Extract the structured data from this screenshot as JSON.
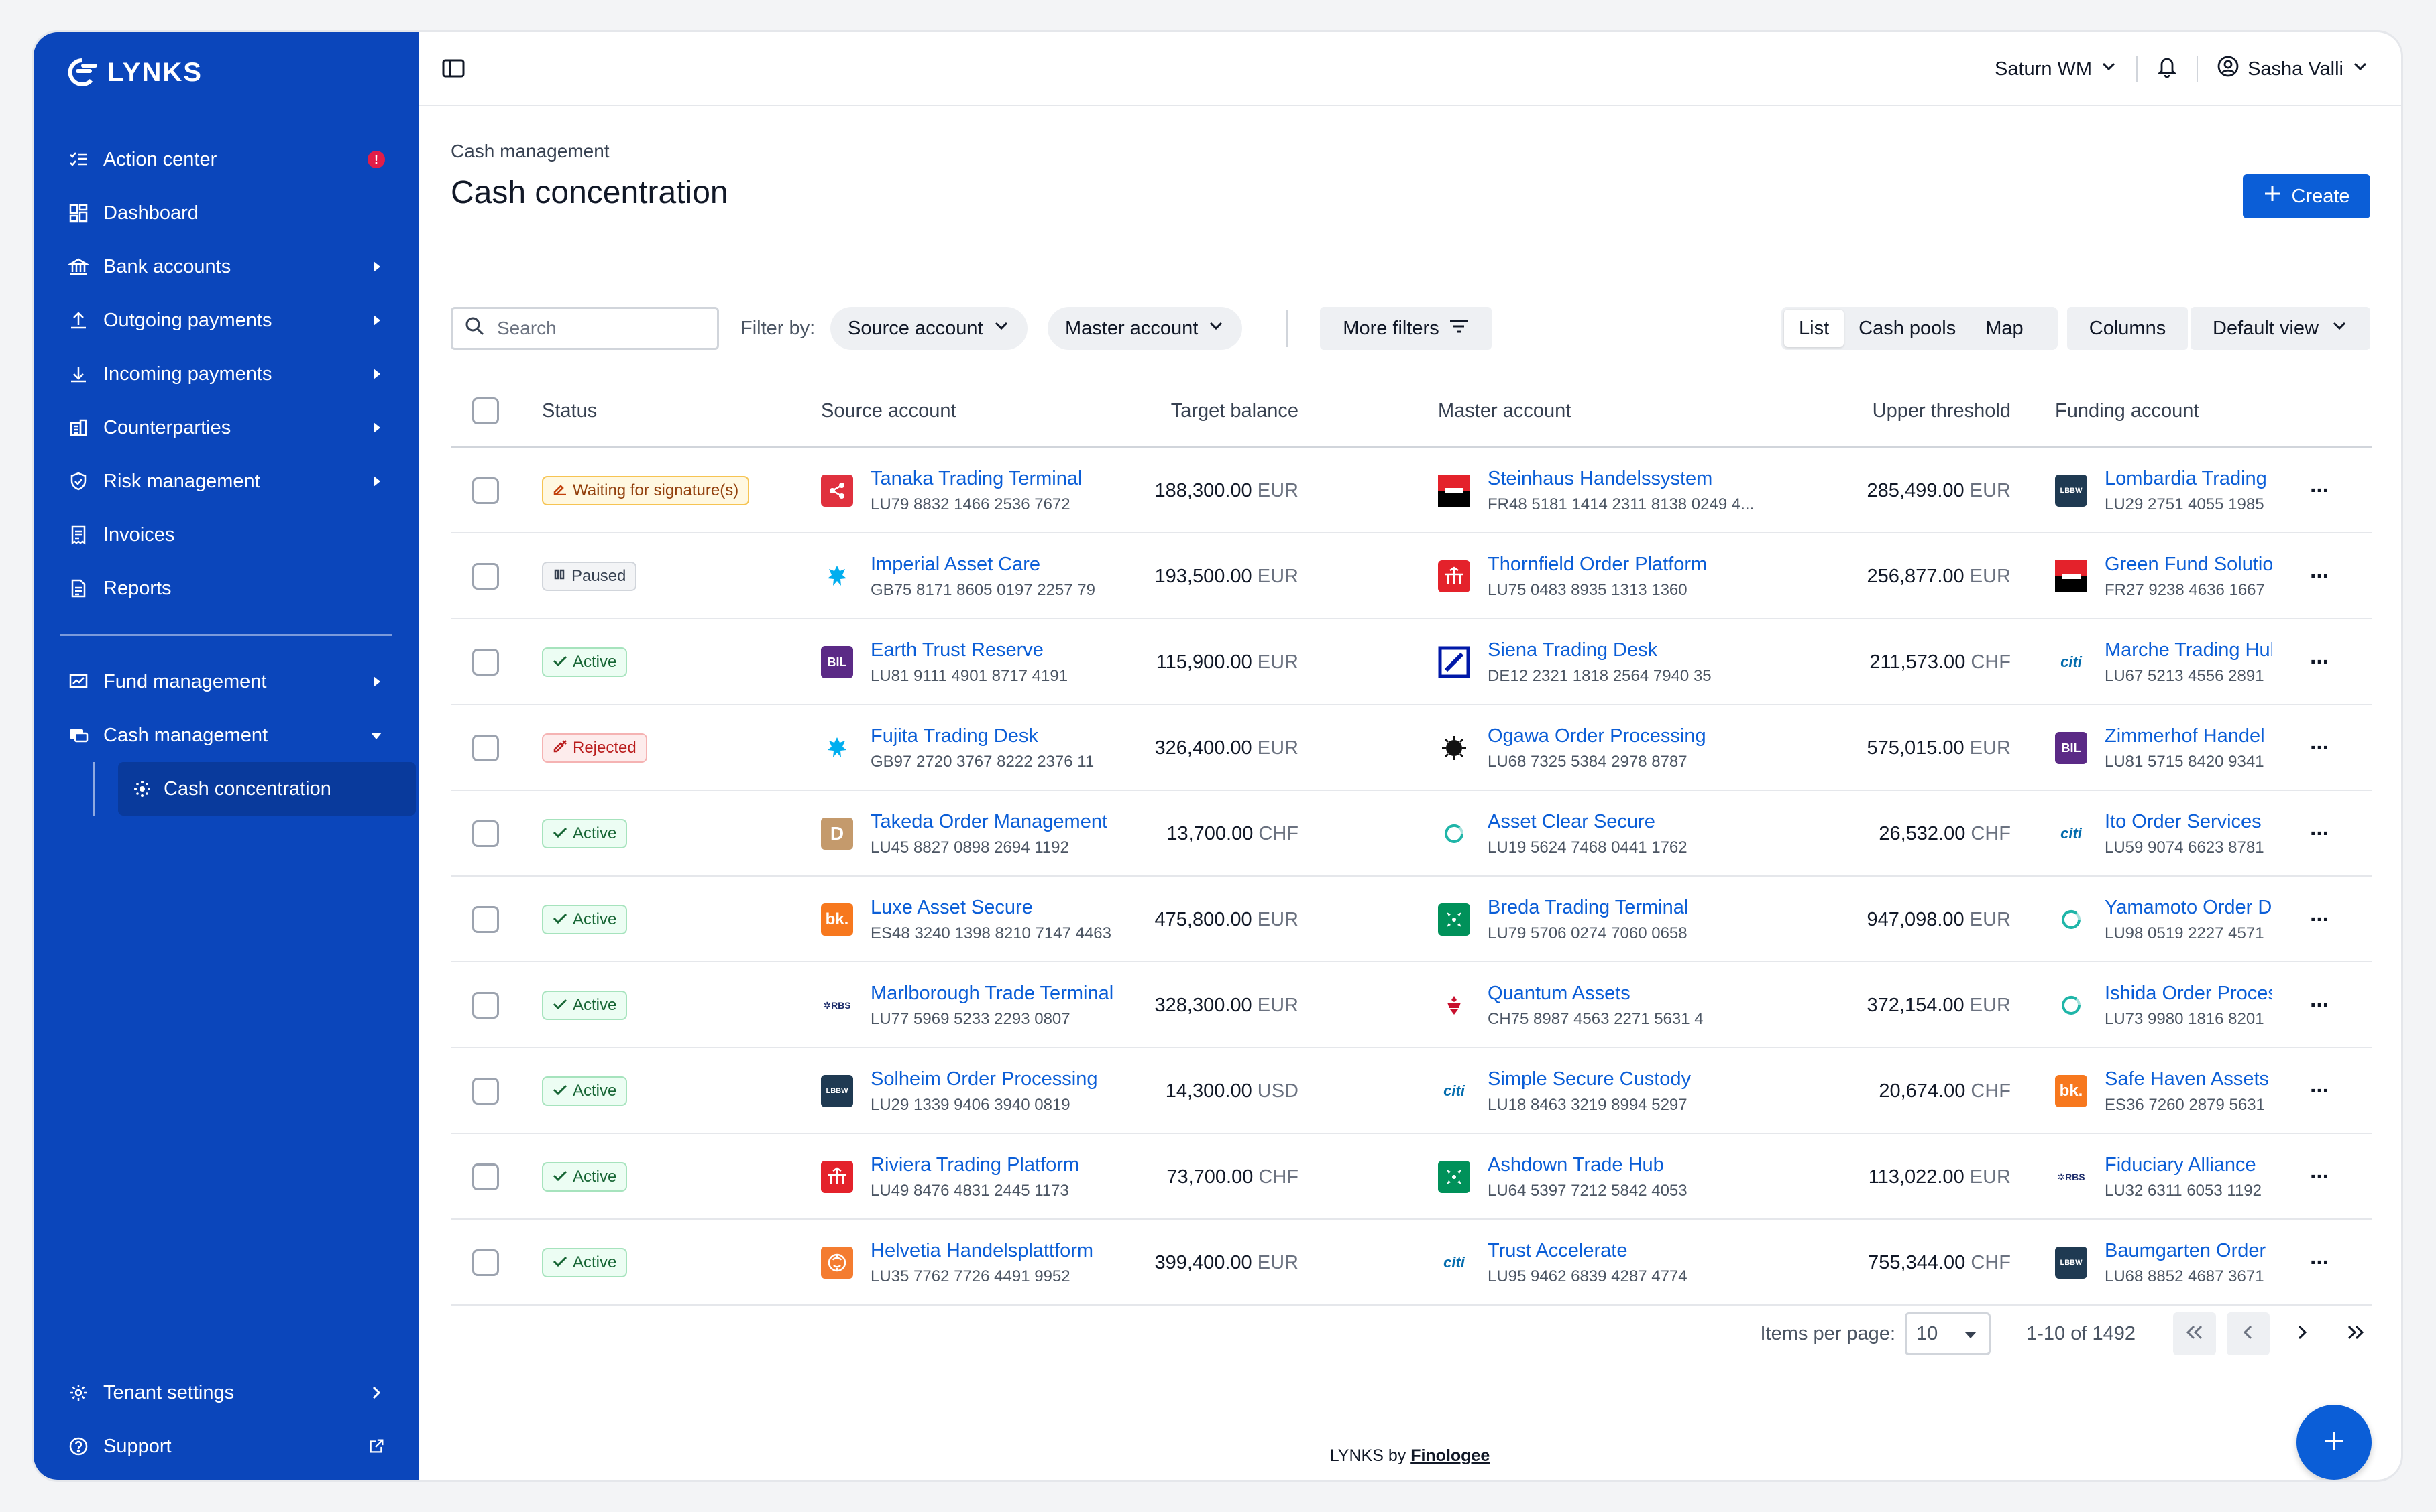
{
  "app": {
    "name": "LYNKS"
  },
  "sidebar": {
    "items": [
      {
        "label": "Action center",
        "icon": "checklist-icon",
        "badge": "!"
      },
      {
        "label": "Dashboard",
        "icon": "dashboard-icon"
      },
      {
        "label": "Bank accounts",
        "icon": "bank-icon"
      },
      {
        "label": "Outgoing payments",
        "icon": "upload-icon"
      },
      {
        "label": "Incoming payments",
        "icon": "download-icon"
      },
      {
        "label": "Counterparties",
        "icon": "building-icon"
      },
      {
        "label": "Risk management",
        "icon": "shield-icon"
      },
      {
        "label": "Invoices",
        "icon": "invoice-icon"
      },
      {
        "label": "Reports",
        "icon": "report-icon"
      }
    ],
    "section2": [
      {
        "label": "Fund management",
        "icon": "fund-icon"
      },
      {
        "label": "Cash management",
        "icon": "cash-icon"
      }
    ],
    "sub_item": {
      "label": "Cash concentration",
      "icon": "concentration-icon"
    },
    "bottom": [
      {
        "label": "Tenant settings",
        "icon": "gear-icon"
      },
      {
        "label": "Support",
        "icon": "help-icon"
      }
    ]
  },
  "topbar": {
    "workspace": "Saturn WM",
    "user": "Sasha Valli"
  },
  "page": {
    "breadcrumb": "Cash management",
    "title": "Cash concentration",
    "create_label": "Create"
  },
  "toolbar": {
    "search_placeholder": "Search",
    "filter_by": "Filter by:",
    "source_filter": "Source account",
    "master_filter": "Master account",
    "more_filters": "More filters",
    "views": [
      "List",
      "Cash pools",
      "Map"
    ],
    "columns": "Columns",
    "default_view": "Default view"
  },
  "table": {
    "headers": {
      "status": "Status",
      "source": "Source account",
      "target": "Target balance",
      "master": "Master account",
      "upper": "Upper threshold",
      "funding": "Funding account"
    },
    "rows": [
      {
        "status": "Waiting for signature(s)",
        "status_type": "waiting",
        "source": {
          "name": "Tanaka Trading Terminal",
          "iban": "LU79 8832 1466 2536 7672",
          "logo": "share",
          "color": "#e0313e"
        },
        "target": "188,300.00",
        "target_cur": "EUR",
        "master": {
          "name": "Steinhaus Handelssystem",
          "iban": "FR48 5181 1414 2311 8138 0249 4...",
          "logo": "sg",
          "color": "#000000"
        },
        "upper": "285,499.00",
        "upper_cur": "EUR",
        "funding": {
          "name": "Lombardia Trading",
          "iban": "LU29 2751 4055 1985",
          "logo": "LBBW",
          "color": "#1f3a52"
        }
      },
      {
        "status": "Paused",
        "status_type": "paused",
        "source": {
          "name": "Imperial Asset Care",
          "iban": "GB75 8171 8605 0197 2257 79",
          "logo": "eagle",
          "color": "#ffffff"
        },
        "target": "193,500.00",
        "target_cur": "EUR",
        "master": {
          "name": "Thornfield Order Platform",
          "iban": "LU75 0483 8935 1313 1360",
          "logo": "bc",
          "color": "#e4222b"
        },
        "upper": "256,877.00",
        "upper_cur": "EUR",
        "funding": {
          "name": "Green Fund Solutions",
          "iban": "FR27 9238 4636 1667",
          "logo": "sg",
          "color": "#000000"
        }
      },
      {
        "status": "Active",
        "status_type": "active",
        "source": {
          "name": "Earth Trust Reserve",
          "iban": "LU81 9111 4901 8717 4191",
          "logo": "BIL",
          "color": "#5b2a86"
        },
        "target": "115,900.00",
        "target_cur": "EUR",
        "master": {
          "name": "Siena Trading Desk",
          "iban": "DE12 2321 1818 2564 7940 35",
          "logo": "db",
          "color": "#ffffff"
        },
        "upper": "211,573.00",
        "upper_cur": "CHF",
        "funding": {
          "name": "Marche Trading Hub",
          "iban": "LU67 5213 4556 2891",
          "logo": "citi",
          "color": "#ffffff"
        }
      },
      {
        "status": "Rejected",
        "status_type": "rejected",
        "source": {
          "name": "Fujita Trading Desk",
          "iban": "GB97 2720 3767 8222 2376 11",
          "logo": "eagle",
          "color": "#ffffff"
        },
        "target": "326,400.00",
        "target_cur": "EUR",
        "master": {
          "name": "Ogawa Order Processing",
          "iban": "LU68 7325 5384 2978 8787",
          "logo": "sun",
          "color": "#ffffff"
        },
        "upper": "575,015.00",
        "upper_cur": "EUR",
        "funding": {
          "name": "Zimmerhof Handel",
          "iban": "LU81 5715 8420 9341",
          "logo": "BIL",
          "color": "#5b2a86"
        }
      },
      {
        "status": "Active",
        "status_type": "active",
        "source": {
          "name": "Takeda Order Management",
          "iban": "LU45 8827 0898 2694 1192",
          "logo": "D",
          "color": "#c49a6c"
        },
        "target": "13,700.00",
        "target_cur": "CHF",
        "master": {
          "name": "Asset Clear Secure",
          "iban": "LU19 5624 7468 0441 1762",
          "logo": "ring",
          "color": "#ffffff"
        },
        "upper": "26,532.00",
        "upper_cur": "CHF",
        "funding": {
          "name": "Ito Order Services",
          "iban": "LU59 9074 6623 8781",
          "logo": "citi",
          "color": "#ffffff"
        }
      },
      {
        "status": "Active",
        "status_type": "active",
        "source": {
          "name": "Luxe Asset Secure",
          "iban": "ES48 3240 1398 8210 7147 4463",
          "logo": "bk.",
          "color": "#f7781e"
        },
        "target": "475,800.00",
        "target_cur": "EUR",
        "master": {
          "name": "Breda Trading Terminal",
          "iban": "LU79 5706 0274 7060 0658",
          "logo": "bnp",
          "color": "#00915a"
        },
        "upper": "947,098.00",
        "upper_cur": "EUR",
        "funding": {
          "name": "Yamamoto Order Desk",
          "iban": "LU98 0519 2227 4571",
          "logo": "ring",
          "color": "#ffffff"
        }
      },
      {
        "status": "Active",
        "status_type": "active",
        "source": {
          "name": "Marlborough Trade Terminal",
          "iban": "LU77 5969 5233 2293 0807",
          "logo": "RBS",
          "color": "#ffffff"
        },
        "target": "328,300.00",
        "target_cur": "EUR",
        "master": {
          "name": "Quantum Assets",
          "iban": "CH75 8987 4563 2271 5631 4",
          "logo": "crest",
          "color": "#ffffff"
        },
        "upper": "372,154.00",
        "upper_cur": "EUR",
        "funding": {
          "name": "Ishida Order Processing",
          "iban": "LU73 9980 1816 8201",
          "logo": "ring",
          "color": "#ffffff"
        }
      },
      {
        "status": "Active",
        "status_type": "active",
        "source": {
          "name": "Solheim Order Processing",
          "iban": "LU29 1339 9406 3940 0819",
          "logo": "LBBW",
          "color": "#1f3a52"
        },
        "target": "14,300.00",
        "target_cur": "USD",
        "master": {
          "name": "Simple Secure Custody",
          "iban": "LU18 8463 3219 8994 5297",
          "logo": "citi",
          "color": "#ffffff"
        },
        "upper": "20,674.00",
        "upper_cur": "CHF",
        "funding": {
          "name": "Safe Haven Assets",
          "iban": "ES36 7260 2879 5631",
          "logo": "bk.",
          "color": "#f7781e"
        }
      },
      {
        "status": "Active",
        "status_type": "active",
        "source": {
          "name": "Riviera Trading Platform",
          "iban": "LU49 8476 4831 2445 1173",
          "logo": "bc",
          "color": "#e4222b"
        },
        "target": "73,700.00",
        "target_cur": "CHF",
        "master": {
          "name": "Ashdown Trade Hub",
          "iban": "LU64 5397 7212 5842 4053",
          "logo": "bnp",
          "color": "#00915a"
        },
        "upper": "113,022.00",
        "upper_cur": "EUR",
        "funding": {
          "name": "Fiduciary Alliance",
          "iban": "LU32 6311 6053 1192",
          "logo": "RBS",
          "color": "#ffffff"
        }
      },
      {
        "status": "Active",
        "status_type": "active",
        "source": {
          "name": "Helvetia Handelsplattform",
          "iban": "LU35 7762 7726 4491 9952",
          "logo": "lion",
          "color": "#f47c30"
        },
        "target": "399,400.00",
        "target_cur": "EUR",
        "master": {
          "name": "Trust Accelerate",
          "iban": "LU95 9462 6839 4287 4774",
          "logo": "citi",
          "color": "#ffffff"
        },
        "upper": "755,344.00",
        "upper_cur": "CHF",
        "funding": {
          "name": "Baumgarten Order",
          "iban": "LU68 8852 4687 3671",
          "logo": "LBBW",
          "color": "#1f3a52"
        }
      }
    ]
  },
  "pager": {
    "items_per_page_label": "Items per page:",
    "items_per_page": "10",
    "range": "1-10 of 1492"
  },
  "footer": {
    "prefix": "LYNKS by",
    "brand": "Finologee"
  },
  "colors": {
    "sidebar": "#0b46bb",
    "accent": "#0b5ed7"
  }
}
